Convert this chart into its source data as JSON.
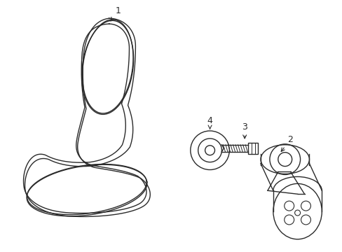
{
  "background_color": "#ffffff",
  "line_color": "#2a2a2a",
  "line_width": 1.0,
  "label_fontsize": 9
}
